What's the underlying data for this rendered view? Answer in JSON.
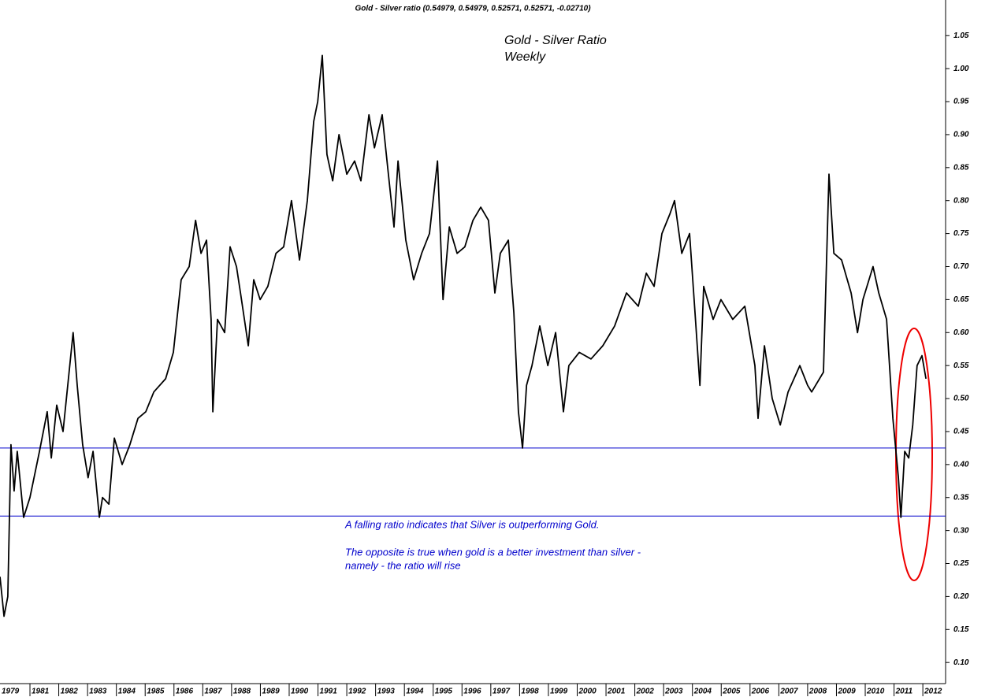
{
  "chart_data": {
    "type": "line",
    "title": "Gold  - Silver ratio (0.54979, 0.54979, 0.52571, 0.52571, -0.02710)",
    "annotations": [
      "Gold - Silver Ratio",
      "Weekly",
      "A falling ratio indicates that Silver is outperforming Gold.",
      "The opposite is true when gold is a better investment than silver -",
      "namely - the ratio will rise"
    ],
    "series": [
      {
        "color": "#000000",
        "x": [
          1979.96,
          1980.1,
          1980.23,
          1980.34,
          1980.45,
          1980.56,
          1980.78,
          1981.0,
          1981.33,
          1981.6,
          1981.74,
          1981.93,
          1982.15,
          1982.5,
          1982.64,
          1982.83,
          1983.02,
          1983.19,
          1983.41,
          1983.52,
          1983.74,
          1983.93,
          1984.2,
          1984.47,
          1984.75,
          1985.02,
          1985.3,
          1985.71,
          1985.98,
          1986.25,
          1986.53,
          1986.75,
          1986.94,
          1987.13,
          1987.29,
          1987.35,
          1987.51,
          1987.76,
          1987.95,
          1988.17,
          1988.31,
          1988.58,
          1988.77,
          1988.99,
          1989.26,
          1989.54,
          1989.81,
          1990.08,
          1990.36,
          1990.63,
          1990.85,
          1990.99,
          1991.15,
          1991.31,
          1991.51,
          1991.73,
          1992.0,
          1992.27,
          1992.49,
          1992.77,
          1992.96,
          1993.23,
          1993.42,
          1993.64,
          1993.78,
          1994.05,
          1994.32,
          1994.6,
          1994.87,
          1995.15,
          1995.34,
          1995.56,
          1995.83,
          1996.1,
          1996.38,
          1996.65,
          1996.92,
          1997.14,
          1997.33,
          1997.61,
          1997.8,
          1997.96,
          1998.1,
          1998.24,
          1998.43,
          1998.7,
          1998.98,
          1999.25,
          1999.52,
          1999.71,
          2000.07,
          2000.48,
          2000.89,
          2001.3,
          2001.71,
          2002.12,
          2002.4,
          2002.67,
          2002.94,
          2003.22,
          2003.38,
          2003.63,
          2003.9,
          2004.09,
          2004.26,
          2004.39,
          2004.72,
          2004.99,
          2005.4,
          2005.82,
          2006.17,
          2006.28,
          2006.5,
          2006.77,
          2007.05,
          2007.32,
          2007.73,
          2008.0,
          2008.14,
          2008.55,
          2008.74,
          2008.91,
          2009.18,
          2009.51,
          2009.73,
          2009.92,
          2010.27,
          2010.47,
          2010.74,
          2010.96,
          2011.15,
          2011.24,
          2011.37,
          2011.51,
          2011.65,
          2011.8,
          2011.97,
          2012.11
        ],
        "values": [
          0.23,
          0.17,
          0.2,
          0.43,
          0.36,
          0.42,
          0.32,
          0.35,
          0.42,
          0.48,
          0.41,
          0.49,
          0.45,
          0.6,
          0.52,
          0.43,
          0.38,
          0.42,
          0.32,
          0.35,
          0.34,
          0.44,
          0.4,
          0.43,
          0.47,
          0.48,
          0.51,
          0.53,
          0.57,
          0.68,
          0.7,
          0.77,
          0.72,
          0.74,
          0.62,
          0.48,
          0.62,
          0.6,
          0.73,
          0.7,
          0.66,
          0.58,
          0.68,
          0.65,
          0.67,
          0.72,
          0.73,
          0.8,
          0.71,
          0.8,
          0.92,
          0.95,
          1.02,
          0.87,
          0.83,
          0.9,
          0.84,
          0.86,
          0.83,
          0.93,
          0.88,
          0.93,
          0.85,
          0.76,
          0.86,
          0.74,
          0.68,
          0.72,
          0.75,
          0.86,
          0.65,
          0.76,
          0.72,
          0.73,
          0.77,
          0.79,
          0.77,
          0.66,
          0.72,
          0.74,
          0.63,
          0.48,
          0.425,
          0.52,
          0.55,
          0.61,
          0.55,
          0.6,
          0.48,
          0.55,
          0.57,
          0.56,
          0.58,
          0.61,
          0.66,
          0.64,
          0.69,
          0.67,
          0.75,
          0.78,
          0.8,
          0.72,
          0.75,
          0.63,
          0.52,
          0.67,
          0.62,
          0.65,
          0.62,
          0.64,
          0.55,
          0.47,
          0.58,
          0.5,
          0.46,
          0.51,
          0.55,
          0.52,
          0.51,
          0.54,
          0.84,
          0.72,
          0.71,
          0.66,
          0.6,
          0.65,
          0.7,
          0.66,
          0.62,
          0.47,
          0.38,
          0.32,
          0.42,
          0.41,
          0.46,
          0.55,
          0.565,
          0.53
        ]
      }
    ],
    "hlines": [
      0.425,
      0.322
    ],
    "hline_color": "#0000cc",
    "xlim": [
      1979.96,
      2012.79
    ],
    "xticks": [
      1979,
      1981,
      1982,
      1983,
      1984,
      1985,
      1986,
      1987,
      1988,
      1989,
      1990,
      1991,
      1992,
      1993,
      1994,
      1995,
      1996,
      1997,
      1998,
      1999,
      2000,
      2001,
      2002,
      2003,
      2004,
      2005,
      2006,
      2007,
      2008,
      2009,
      2010,
      2011,
      2012
    ],
    "ylim": [
      0.068,
      1.104
    ],
    "yticks": [
      {
        "value": 0.1,
        "label": "0.10"
      },
      {
        "value": 0.15,
        "label": "0.15"
      },
      {
        "value": 0.2,
        "label": "0.20"
      },
      {
        "value": 0.25,
        "label": "0.25"
      },
      {
        "value": 0.3,
        "label": "0.30"
      },
      {
        "value": 0.35,
        "label": "0.35"
      },
      {
        "value": 0.4,
        "label": "0.40"
      },
      {
        "value": 0.45,
        "label": "0.45"
      },
      {
        "value": 0.5,
        "label": "0.50"
      },
      {
        "value": 0.55,
        "label": "0.55"
      },
      {
        "value": 0.6,
        "label": "0.60"
      },
      {
        "value": 0.65,
        "label": "0.65"
      },
      {
        "value": 0.7,
        "label": "0.70"
      },
      {
        "value": 0.75,
        "label": "0.75"
      },
      {
        "value": 0.8,
        "label": "0.80"
      },
      {
        "value": 0.85,
        "label": "0.85"
      },
      {
        "value": 0.9,
        "label": "0.90"
      },
      {
        "value": 0.95,
        "label": "0.95"
      },
      {
        "value": 1.0,
        "label": "1.00"
      },
      {
        "value": 1.05,
        "label": "1.05"
      }
    ],
    "grid": false
  }
}
